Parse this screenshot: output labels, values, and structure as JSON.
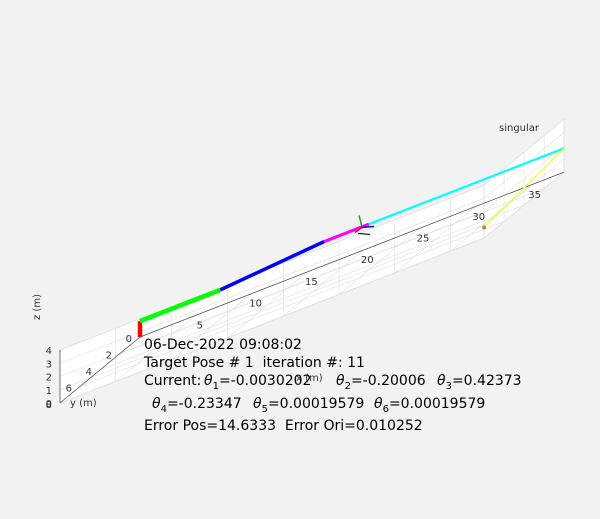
{
  "chart_data": {
    "type": "line",
    "title": "",
    "background": "#f2f2f2",
    "axes_background": "#ffffff",
    "grid": true,
    "xlabel": "x (m)",
    "ylabel": "y (m)",
    "zlabel": "z (m)",
    "xlim": [
      0,
      38
    ],
    "ylim": [
      0,
      8
    ],
    "zlim": [
      0,
      4
    ],
    "x_ticks": [
      "5",
      "10",
      "15",
      "20",
      "25",
      "30",
      "35"
    ],
    "y_ticks": [
      "0",
      "2",
      "4",
      "6",
      "8"
    ],
    "z_ticks": [
      "0",
      "1",
      "2",
      "3",
      "4"
    ],
    "arm_segments": [
      {
        "color": "#ff0000",
        "from": [
          0,
          0,
          0
        ],
        "to": [
          0,
          0,
          1.2
        ]
      },
      {
        "color": "#00ff00",
        "from": [
          0,
          0,
          1.2
        ],
        "to": [
          7.2,
          0,
          1.2
        ]
      },
      {
        "color": "#0000ff",
        "from": [
          7.2,
          0,
          1.2
        ],
        "to": [
          16.5,
          0,
          1.8
        ]
      },
      {
        "color": "#ff00ff",
        "from": [
          16.5,
          0,
          1.8
        ],
        "to": [
          20.5,
          0,
          1.8
        ]
      },
      {
        "color": "#00ffff",
        "from": [
          20.5,
          0,
          1.8
        ],
        "to": [
          38,
          0,
          1.8
        ]
      },
      {
        "color": "#ffff00",
        "from": [
          38,
          0,
          1.8
        ],
        "to": [
          38,
          8,
          0.8
        ]
      }
    ],
    "singular_label": "singular",
    "target_point": [
      19.9,
      0,
      1.75
    ]
  },
  "overlay": {
    "timestamp": "06-Dec-2022 09:08:02",
    "target_line": "Target Pose # 1  iteration #: 11",
    "current_label": "Current:",
    "thetas": [
      {
        "sym": "θ",
        "sub": "1",
        "val": "=-0.0030202"
      },
      {
        "sym": "θ",
        "sub": "2",
        "val": "=-0.20006"
      },
      {
        "sym": "θ",
        "sub": "3",
        "val": "=0.42373"
      },
      {
        "sym": "θ",
        "sub": "4",
        "val": "=-0.23347"
      },
      {
        "sym": "θ",
        "sub": "5",
        "val": "=0.00019579"
      },
      {
        "sym": "θ",
        "sub": "6",
        "val": "=0.00019579"
      }
    ],
    "error_line": "Error Pos=14.6333  Error Ori=0.010252"
  }
}
